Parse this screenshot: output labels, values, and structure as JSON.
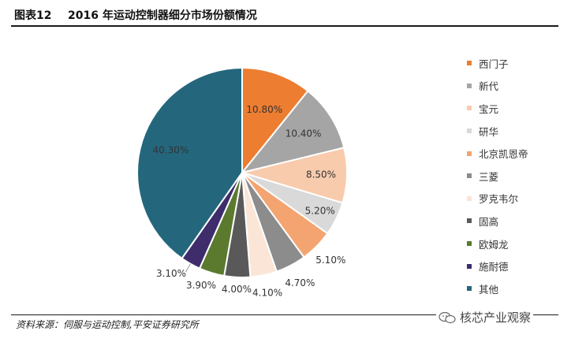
{
  "figure": {
    "number": "图表12",
    "title": "2016 年运动控制器细分市场份额情况"
  },
  "source": "资料来源：伺服与运动控制,平安证券研究所",
  "watermark": "核芯产业观察",
  "chart_data": {
    "type": "pie",
    "title": "2016 年运动控制器细分市场份额情况",
    "legend_position": "right",
    "start_angle_deg": 0,
    "direction": "clockwise",
    "categories": [
      "西门子",
      "新代",
      "宝元",
      "研华",
      "北京凯恩帝",
      "三菱",
      "罗克韦尔",
      "固高",
      "欧姆龙",
      "施耐德",
      "其他"
    ],
    "values": [
      10.8,
      10.4,
      8.5,
      5.2,
      5.1,
      4.7,
      4.1,
      4.0,
      3.9,
      3.1,
      40.3
    ],
    "labels": [
      "10.80%",
      "10.40%",
      "8.50%",
      "5.20%",
      "5.10%",
      "4.70%",
      "4.10%",
      "4.00%",
      "3.90%",
      "3.10%",
      "40.30%"
    ],
    "colors": [
      "#ED7D31",
      "#A5A5A5",
      "#F8CBAD",
      "#D9D9D9",
      "#F4A470",
      "#8C8C8C",
      "#FBE5D6",
      "#595959",
      "#5B7A2E",
      "#3E2C6B",
      "#24677D"
    ]
  }
}
